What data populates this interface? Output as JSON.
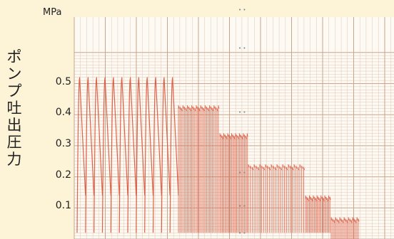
{
  "chart_data": {
    "type": "line",
    "title": "",
    "xlabel": "",
    "ylabel": "ポンプ吐出圧力",
    "unit": "MPa",
    "ylim": [
      0,
      0.6
    ],
    "yticks": [
      "0.5",
      "0.4",
      "0.3",
      "0.2",
      "0.1"
    ],
    "grid": true,
    "colors": {
      "trace": "#d9533a",
      "grid_major": "#c9a48e",
      "grid_minor": "#e2c6b4",
      "paper": "#fdfaf3",
      "background": "#fdf3d6"
    },
    "series": [
      {
        "segments": [
          {
            "cycles": 12,
            "peak": 0.52,
            "trough": 0.02,
            "style": "sawtooth"
          },
          {
            "cycles": 28,
            "peak": 0.43,
            "trough": 0.02,
            "style": "dense"
          },
          {
            "cycles": 22,
            "peak": 0.34,
            "trough": 0.02,
            "style": "dense"
          },
          {
            "cycles": 30,
            "peak": 0.24,
            "trough": 0.02,
            "style": "dense"
          },
          {
            "cycles": 20,
            "peak": 0.14,
            "trough": 0.02,
            "style": "dense"
          },
          {
            "cycles": 20,
            "peak": 0.07,
            "trough": 0.0,
            "style": "dense"
          }
        ]
      }
    ]
  }
}
